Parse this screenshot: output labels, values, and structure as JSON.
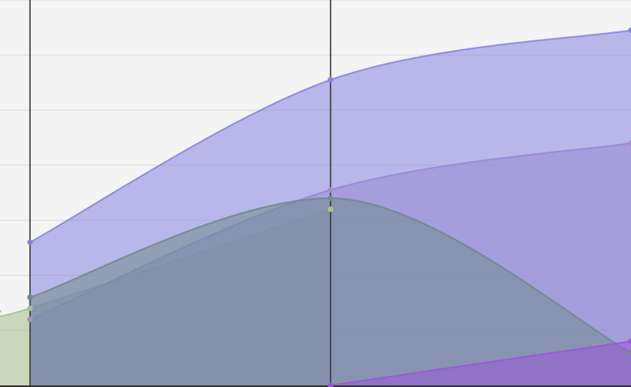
{
  "chart_data": {
    "type": "area",
    "title": "",
    "xlabel": "",
    "ylabel": "",
    "grid": true,
    "x": [
      1,
      2,
      3
    ],
    "xlim": [
      0.9,
      3.0
    ],
    "ylim": [
      0,
      7
    ],
    "y_gridlines": [
      1,
      2,
      3,
      4,
      5,
      6,
      7
    ],
    "series": [
      {
        "color": "#8884e0",
        "values": [
          2.6,
          5.55,
          6.45
        ]
      },
      {
        "color": "#a98fc4",
        "values": [
          1.2,
          3.55,
          4.4
        ]
      },
      {
        "color": "#6f8a8c",
        "values": [
          1.6,
          3.4,
          0.6
        ]
      },
      {
        "color": "#a8bf90",
        "values": [
          1.4,
          3.2,
          null
        ]
      },
      {
        "color": "#9a58d8",
        "values": [
          null,
          0.0,
          0.8
        ]
      }
    ]
  }
}
